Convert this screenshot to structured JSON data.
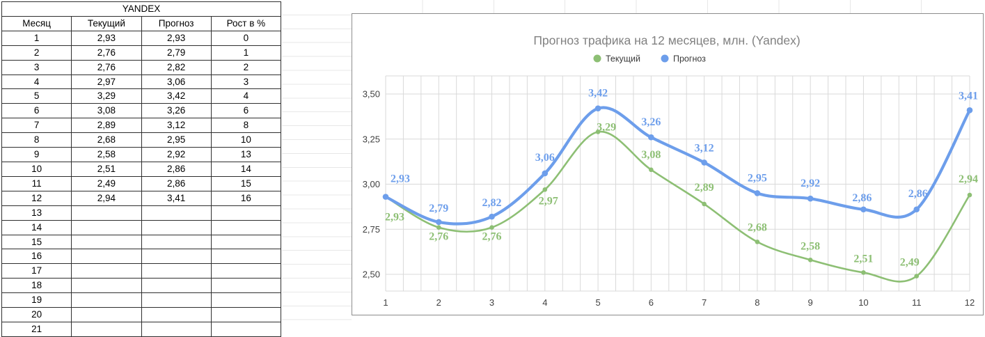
{
  "table": {
    "title": "YANDEX",
    "columns": [
      "Месяц",
      "Текущий",
      "Прогноз",
      "Рост в %"
    ],
    "rows": [
      [
        "1",
        "2,93",
        "2,93",
        "0"
      ],
      [
        "2",
        "2,76",
        "2,79",
        "1"
      ],
      [
        "3",
        "2,76",
        "2,82",
        "2"
      ],
      [
        "4",
        "2,97",
        "3,06",
        "3"
      ],
      [
        "5",
        "3,29",
        "3,42",
        "4"
      ],
      [
        "6",
        "3,08",
        "3,26",
        "6"
      ],
      [
        "7",
        "2,89",
        "3,12",
        "8"
      ],
      [
        "8",
        "2,68",
        "2,95",
        "10"
      ],
      [
        "9",
        "2,58",
        "2,92",
        "13"
      ],
      [
        "10",
        "2,51",
        "2,86",
        "14"
      ],
      [
        "11",
        "2,49",
        "2,86",
        "15"
      ],
      [
        "12",
        "2,94",
        "3,41",
        "16"
      ],
      [
        "13",
        "",
        "",
        ""
      ],
      [
        "14",
        "",
        "",
        ""
      ],
      [
        "15",
        "",
        "",
        ""
      ],
      [
        "16",
        "",
        "",
        ""
      ],
      [
        "17",
        "",
        "",
        ""
      ],
      [
        "18",
        "",
        "",
        ""
      ],
      [
        "19",
        "",
        "",
        ""
      ],
      [
        "20",
        "",
        "",
        ""
      ],
      [
        "21",
        "",
        "",
        ""
      ]
    ]
  },
  "chart_data": {
    "type": "line",
    "title": "Прогноз трафика на 12 месяцев, млн. (Yandex)",
    "title_color": "#818181",
    "x": [
      1,
      2,
      3,
      4,
      5,
      6,
      7,
      8,
      9,
      10,
      11,
      12
    ],
    "xtick_labels": [
      "1",
      "2",
      "3",
      "4",
      "5",
      "6",
      "7",
      "8",
      "9",
      "10",
      "11",
      "12"
    ],
    "series": [
      {
        "name": "Текущий",
        "color": "#8dbf74",
        "values": [
          2.93,
          2.76,
          2.76,
          2.97,
          3.29,
          3.08,
          2.89,
          2.68,
          2.58,
          2.51,
          2.49,
          2.94
        ],
        "labels": [
          "2,93",
          "2,76",
          "2,76",
          "2,97",
          "3,29",
          "3,08",
          "2,89",
          "2,68",
          "2,58",
          "2,51",
          "2,49",
          "2,94"
        ]
      },
      {
        "name": "Прогноз",
        "color": "#6d9eeb",
        "values": [
          2.93,
          2.79,
          2.82,
          3.06,
          3.42,
          3.26,
          3.12,
          2.95,
          2.92,
          2.86,
          2.86,
          3.41
        ],
        "labels": [
          "2,93",
          "2,79",
          "2,82",
          "3,06",
          "3,42",
          "3,26",
          "3,12",
          "2,95",
          "2,92",
          "2,86",
          "2,86",
          "3,41"
        ]
      }
    ],
    "ylim": [
      2.4,
      3.6
    ],
    "yticks": [
      3.5,
      3.25,
      3.0,
      2.75,
      2.5
    ],
    "ytick_labels": [
      "3,50",
      "3,25",
      "3,00",
      "2,75",
      "2,50"
    ],
    "grid": true,
    "minor_x_divisions": 3,
    "smooth": true,
    "data_labels": true,
    "decimal_separator": ",",
    "legend_position": "top",
    "grid_color": "#d9d9d9",
    "tick_color": "#404040"
  }
}
